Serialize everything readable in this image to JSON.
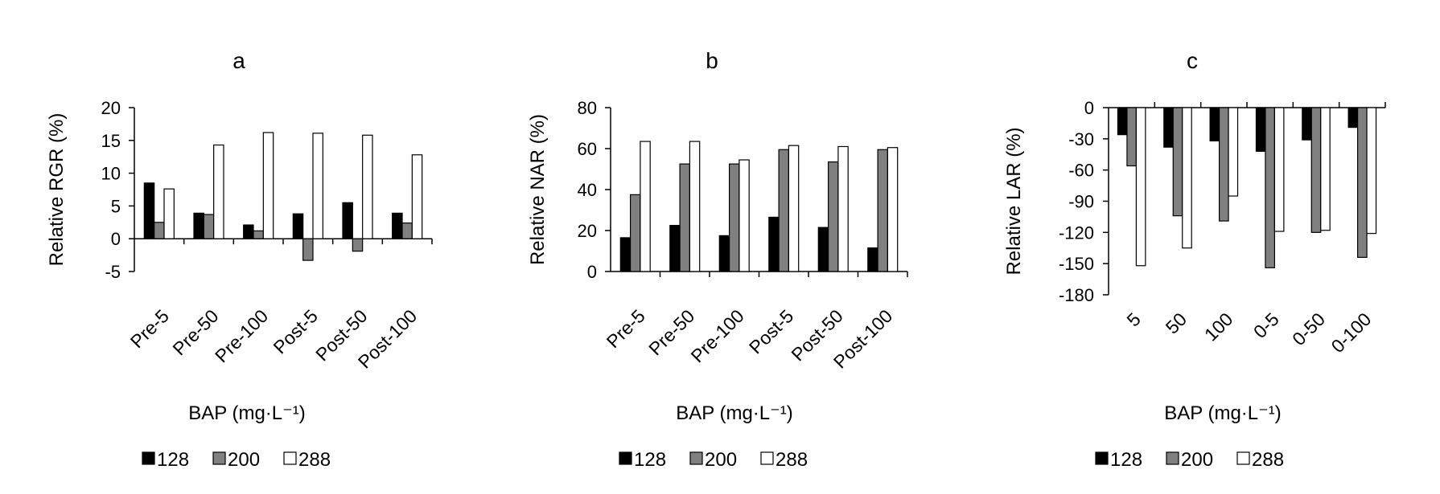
{
  "chart_data": [
    {
      "type": "bar",
      "title": "a",
      "ylabel": "Relative RGR (%)",
      "xlabel": "BAP (mg·L⁻¹)",
      "ylim": [
        -5,
        20
      ],
      "yticks": [
        -5,
        0,
        5,
        10,
        15,
        20
      ],
      "categories": [
        "Pre-5",
        "Pre-50",
        "Pre-100",
        "Post-5",
        "Post-50",
        "Post-100"
      ],
      "series": [
        {
          "name": "128",
          "color": "#000000",
          "values": [
            8.5,
            3.9,
            2.1,
            3.8,
            5.5,
            3.9
          ]
        },
        {
          "name": "200",
          "color": "#808080",
          "values": [
            2.5,
            3.7,
            1.2,
            -3.3,
            -1.9,
            2.4
          ]
        },
        {
          "name": "288",
          "color": "#ffffff",
          "values": [
            7.6,
            14.3,
            16.2,
            16.1,
            15.8,
            12.8
          ]
        }
      ],
      "legend_placement": "bottom",
      "grid": false
    },
    {
      "type": "bar",
      "title": "b",
      "ylabel": "Relative NAR (%)",
      "xlabel": "BAP (mg·L⁻¹)",
      "ylim": [
        0,
        80
      ],
      "yticks": [
        0,
        20,
        40,
        60,
        80
      ],
      "categories": [
        "Pre-5",
        "Pre-50",
        "Pre-100",
        "Post-5",
        "Post-50",
        "Post-100"
      ],
      "series": [
        {
          "name": "128",
          "color": "#000000",
          "values": [
            16.5,
            22.5,
            17.5,
            26.5,
            21.5,
            11.5
          ]
        },
        {
          "name": "200",
          "color": "#808080",
          "values": [
            37.5,
            52.5,
            52.5,
            59.5,
            53.5,
            59.5
          ]
        },
        {
          "name": "288",
          "color": "#ffffff",
          "values": [
            63.5,
            63.5,
            54.5,
            61.5,
            61.0,
            60.5
          ]
        }
      ],
      "legend_placement": "bottom",
      "grid": false
    },
    {
      "type": "bar",
      "title": "c",
      "ylabel": "Relative LAR (%)",
      "xlabel": "BAP (mg·L⁻¹)",
      "ylim": [
        -180,
        0
      ],
      "yticks": [
        0,
        -30,
        -60,
        -90,
        -120,
        -150,
        -180
      ],
      "categories": [
        "5",
        "50",
        "100",
        "0-5",
        "0-50",
        "0-100"
      ],
      "series": [
        {
          "name": "128",
          "color": "#000000",
          "values": [
            -26,
            -38,
            -32,
            -42,
            -31,
            -19
          ]
        },
        {
          "name": "200",
          "color": "#808080",
          "values": [
            -56,
            -104,
            -109,
            -154,
            -120,
            -144
          ]
        },
        {
          "name": "288",
          "color": "#ffffff",
          "values": [
            -152,
            -135,
            -85,
            -119,
            -118,
            -121
          ]
        }
      ],
      "legend_placement": "bottom",
      "grid": false
    }
  ]
}
